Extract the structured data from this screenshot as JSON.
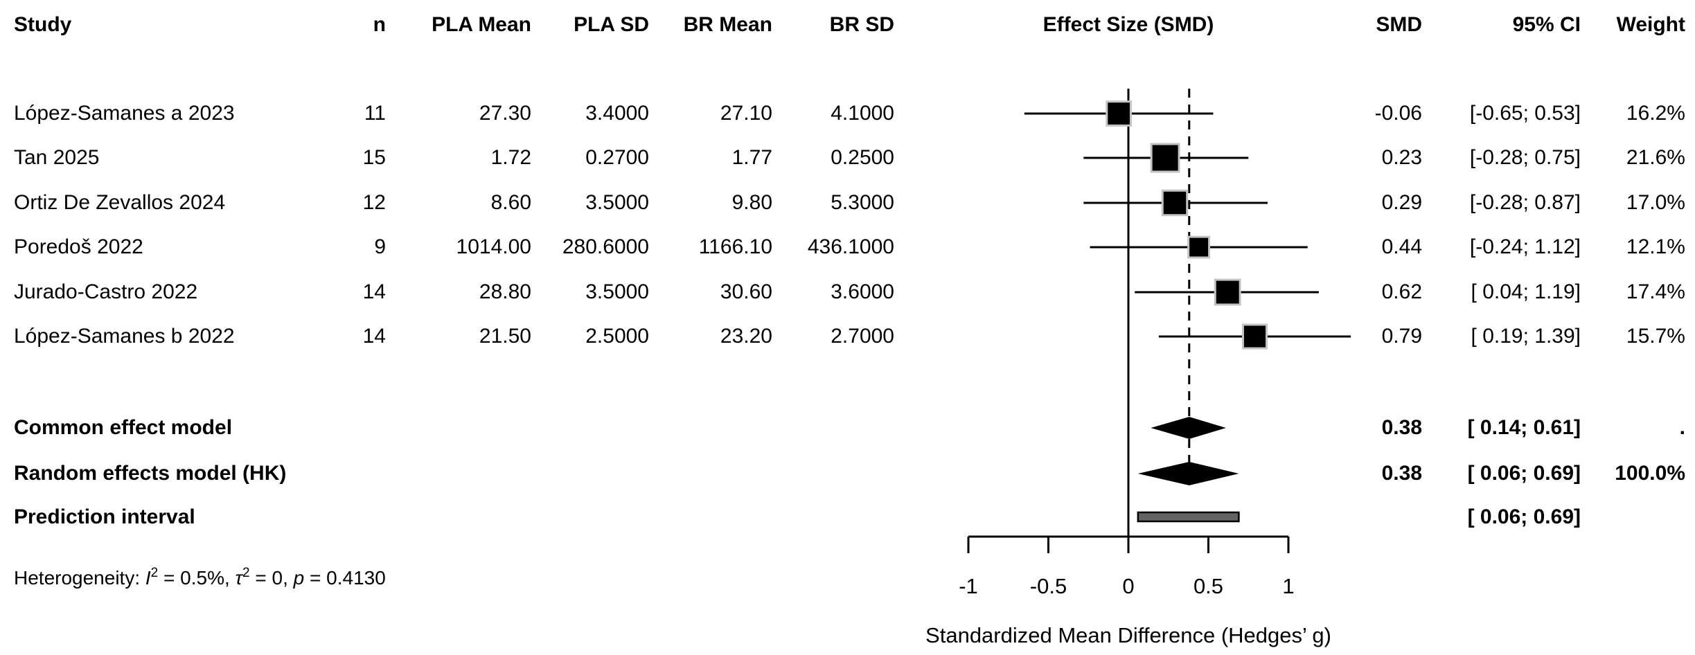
{
  "header": {
    "study": "Study",
    "n": "n",
    "pla_mean": "PLA Mean",
    "pla_sd": "PLA SD",
    "br_mean": "BR Mean",
    "br_sd": "BR SD",
    "effect_size": "Effect Size (SMD)",
    "smd": "SMD",
    "ci": "95% CI",
    "weight": "Weight"
  },
  "chart_data": {
    "type": "forest",
    "studies": [
      {
        "study": "López-Samanes a 2023",
        "n": "11",
        "pla_mean": "27.30",
        "pla_sd": "3.4000",
        "br_mean": "27.10",
        "br_sd": "4.1000",
        "smd": -0.06,
        "smd_label": "-0.06",
        "ci_low": -0.65,
        "ci_high": 0.53,
        "ci_label": "[-0.65; 0.53]",
        "weight": 16.2,
        "weight_label": "16.2%"
      },
      {
        "study": "Tan 2025",
        "n": "15",
        "pla_mean": "1.72",
        "pla_sd": "0.2700",
        "br_mean": "1.77",
        "br_sd": "0.2500",
        "smd": 0.23,
        "smd_label": "0.23",
        "ci_low": -0.28,
        "ci_high": 0.75,
        "ci_label": "[-0.28; 0.75]",
        "weight": 21.6,
        "weight_label": "21.6%"
      },
      {
        "study": "Ortiz De Zevallos 2024",
        "n": "12",
        "pla_mean": "8.60",
        "pla_sd": "3.5000",
        "br_mean": "9.80",
        "br_sd": "5.3000",
        "smd": 0.29,
        "smd_label": "0.29",
        "ci_low": -0.28,
        "ci_high": 0.87,
        "ci_label": "[-0.28; 0.87]",
        "weight": 17.0,
        "weight_label": "17.0%"
      },
      {
        "study": "Poredoš 2022",
        "n": "9",
        "pla_mean": "1014.00",
        "pla_sd": "280.6000",
        "br_mean": "1166.10",
        "br_sd": "436.1000",
        "smd": 0.44,
        "smd_label": "0.44",
        "ci_low": -0.24,
        "ci_high": 1.12,
        "ci_label": "[-0.24; 1.12]",
        "weight": 12.1,
        "weight_label": "12.1%"
      },
      {
        "study": "Jurado-Castro 2022",
        "n": "14",
        "pla_mean": "28.80",
        "pla_sd": "3.5000",
        "br_mean": "30.60",
        "br_sd": "3.6000",
        "smd": 0.62,
        "smd_label": "0.62",
        "ci_low": 0.04,
        "ci_high": 1.19,
        "ci_label": "[ 0.04; 1.19]",
        "weight": 17.4,
        "weight_label": "17.4%"
      },
      {
        "study": "López-Samanes b 2022",
        "n": "14",
        "pla_mean": "21.50",
        "pla_sd": "2.5000",
        "br_mean": "23.20",
        "br_sd": "2.7000",
        "smd": 0.79,
        "smd_label": "0.79",
        "ci_low": 0.19,
        "ci_high": 1.39,
        "ci_label": "[ 0.19; 1.39]",
        "weight": 15.7,
        "weight_label": "15.7%"
      }
    ],
    "summaries": [
      {
        "label": "Common effect model",
        "smd": 0.38,
        "smd_label": "0.38",
        "ci_low": 0.14,
        "ci_high": 0.61,
        "ci_label": "[ 0.14; 0.61]",
        "weight_label": "."
      },
      {
        "label": "Random effects model (HK)",
        "smd": 0.38,
        "smd_label": "0.38",
        "ci_low": 0.06,
        "ci_high": 0.69,
        "ci_label": "[ 0.06; 0.69]",
        "weight_label": "100.0%"
      }
    ],
    "prediction_interval": {
      "label": "Prediction interval",
      "ci_low": 0.06,
      "ci_high": 0.69,
      "ci_label": "[ 0.06; 0.69]"
    },
    "heterogeneity": {
      "prefix": "Heterogeneity: ",
      "i_sym": "I",
      "sup": "2",
      "i_val": " = 0.5%, ",
      "tau_sym": "τ",
      "tau_val": " = 0, ",
      "p_sym": "p",
      "p_val": " = 0.4130"
    },
    "axis": {
      "xlim": [
        -1,
        1
      ],
      "ticks": [
        -1,
        -0.5,
        0,
        0.5,
        1
      ],
      "tick_labels": [
        "-1",
        "-0.5",
        "0",
        "0.5",
        "1"
      ],
      "zero_line": 0,
      "pooled_dashed": 0.38,
      "xlabel": "Standardized Mean Difference (Hedges’ g)"
    },
    "colors": {
      "ink": "#000000",
      "square_fill": "#000000",
      "square_border": "#c4c4c4",
      "diamond_fill": "#000000",
      "prediction_fill": "#636363",
      "prediction_border": "#000000"
    }
  }
}
